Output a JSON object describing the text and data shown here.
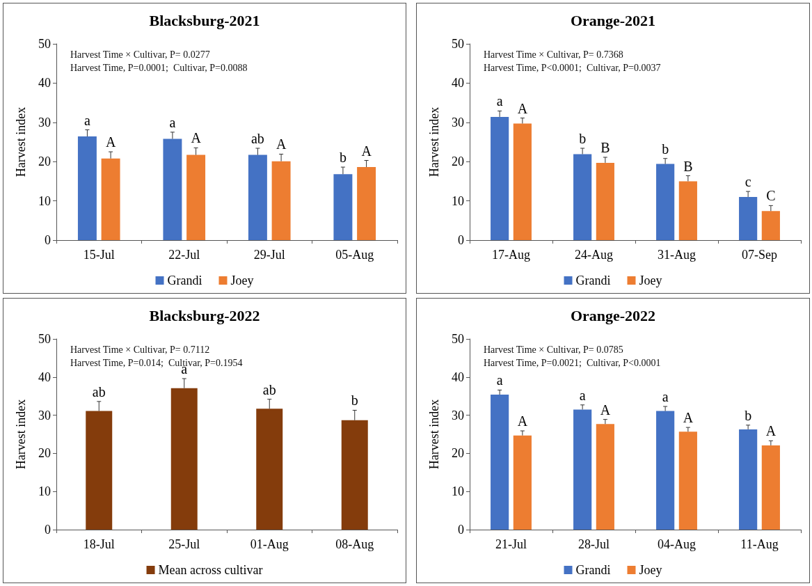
{
  "chart_data": [
    {
      "type": "bar",
      "title": "Blacksburg-2021",
      "ylabel": "Harvest index",
      "categories": [
        "15-Jul",
        "22-Jul",
        "29-Jul",
        "05-Aug"
      ],
      "ylim": [
        0,
        50
      ],
      "yticks": [
        0,
        10,
        20,
        30,
        40,
        50
      ],
      "grid": false,
      "legend": "bottom",
      "annotations": [
        "Harvest Time × Cultivar, P= 0.0277",
        "Harvest Time, P=0.0001;  Cultivar, P=0.0088"
      ],
      "series": [
        {
          "name": "Grandi",
          "color": "#4472c4",
          "values": [
            26.4,
            25.8,
            21.7,
            16.8
          ],
          "errors": [
            1.7,
            1.7,
            1.7,
            1.8
          ],
          "value_labels": [
            "a",
            "a",
            "ab",
            "b"
          ]
        },
        {
          "name": "Joey",
          "color": "#ed7d31",
          "values": [
            20.8,
            21.7,
            20.1,
            18.6
          ],
          "errors": [
            1.7,
            1.8,
            1.8,
            1.7
          ],
          "value_labels": [
            "A",
            "A",
            "A",
            "A"
          ]
        }
      ]
    },
    {
      "type": "bar",
      "title": "Orange-2021",
      "ylabel": "Harvest index",
      "categories": [
        "17-Aug",
        "24-Aug",
        "31-Aug",
        "07-Sep"
      ],
      "ylim": [
        0,
        50
      ],
      "yticks": [
        0,
        10,
        20,
        30,
        40,
        50
      ],
      "grid": false,
      "legend": "bottom",
      "annotations": [
        "Harvest Time × Cultivar, P= 0.7368",
        "Harvest Time, P<0.0001;  Cultivar, P=0.0037"
      ],
      "series": [
        {
          "name": "Grandi",
          "color": "#4472c4",
          "values": [
            31.4,
            21.9,
            19.4,
            11.0
          ],
          "errors": [
            1.5,
            1.5,
            1.4,
            1.4
          ],
          "value_labels": [
            "a",
            "b",
            "b",
            "c"
          ]
        },
        {
          "name": "Joey",
          "color": "#ed7d31",
          "values": [
            29.7,
            19.7,
            15.0,
            7.4
          ],
          "errors": [
            1.4,
            1.4,
            1.4,
            1.4
          ],
          "value_labels": [
            "A",
            "B",
            "B",
            "C"
          ]
        }
      ]
    },
    {
      "type": "bar",
      "title": "Blacksburg-2022",
      "ylabel": "Harvest index",
      "categories": [
        "18-Jul",
        "25-Jul",
        "01-Aug",
        "08-Aug"
      ],
      "ylim": [
        0,
        50
      ],
      "yticks": [
        0,
        10,
        20,
        30,
        40,
        50
      ],
      "grid": false,
      "legend": "bottom",
      "annotations": [
        "Harvest Time × Cultivar, P= 0.7112",
        "Harvest Time, P=0.014;  Cultivar, P=0.1954"
      ],
      "series": [
        {
          "name": "Mean across cultivar",
          "color": "#843c0c",
          "values": [
            31.1,
            37.1,
            31.7,
            28.7
          ],
          "errors": [
            2.5,
            2.5,
            2.5,
            2.6
          ],
          "value_labels": [
            "ab",
            "a",
            "ab",
            "b"
          ]
        }
      ]
    },
    {
      "type": "bar",
      "title": "Orange-2022",
      "ylabel": "Harvest index",
      "categories": [
        "21-Jul",
        "28-Jul",
        "04-Aug",
        "11-Aug"
      ],
      "ylim": [
        0,
        50
      ],
      "yticks": [
        0,
        10,
        20,
        30,
        40,
        50
      ],
      "grid": false,
      "legend": "bottom",
      "annotations": [
        "Harvest Time × Cultivar, P= 0.0785",
        "Harvest Time, P=0.0021;  Cultivar, P<0.0001"
      ],
      "series": [
        {
          "name": "Grandi",
          "color": "#4472c4",
          "values": [
            35.4,
            31.5,
            31.1,
            26.3
          ],
          "errors": [
            1.2,
            1.2,
            1.2,
            1.1
          ],
          "value_labels": [
            "a",
            "a",
            "a",
            "b"
          ]
        },
        {
          "name": "Joey",
          "color": "#ed7d31",
          "values": [
            24.7,
            27.7,
            25.7,
            22.1
          ],
          "errors": [
            1.2,
            1.2,
            1.1,
            1.2
          ],
          "value_labels": [
            "A",
            "A",
            "A",
            "A"
          ]
        }
      ]
    }
  ]
}
